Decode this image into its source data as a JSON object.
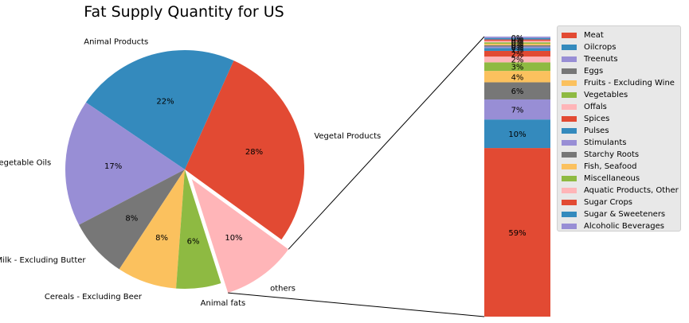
{
  "chart_data": [
    {
      "type": "pie",
      "title": "Fat Supply Quantity for US",
      "slices": [
        {
          "label": "Vegetal Products",
          "value": 28,
          "pct_label": "28%",
          "color": "#E24A33"
        },
        {
          "label": "Animal Products",
          "value": 22,
          "pct_label": "22%",
          "color": "#348ABD"
        },
        {
          "label": "Vegetable Oils",
          "value": 17,
          "pct_label": "17%",
          "color": "#988ED5"
        },
        {
          "label": "Milk - Excluding Butter",
          "value": 8,
          "pct_label": "8%",
          "color": "#777777"
        },
        {
          "label": "Cereals - Excluding Beer",
          "value": 8,
          "pct_label": "8%",
          "color": "#FBC15E"
        },
        {
          "label": "Animal fats",
          "value": 6,
          "pct_label": "6%",
          "color": "#8EBA42"
        },
        {
          "label": "others",
          "value": 10,
          "pct_label": "10%",
          "color": "#FFB5B8",
          "exploded": true
        }
      ]
    },
    {
      "type": "bar",
      "stacked": true,
      "description_of": "breakdown of others",
      "segments": [
        {
          "label": "Meat",
          "value": 59,
          "pct_label": "59%",
          "color": "#E24A33"
        },
        {
          "label": "Oilcrops",
          "value": 10,
          "pct_label": "10%",
          "color": "#348ABD"
        },
        {
          "label": "Treenuts",
          "value": 7,
          "pct_label": "7%",
          "color": "#988ED5"
        },
        {
          "label": "Eggs",
          "value": 6,
          "pct_label": "6%",
          "color": "#777777"
        },
        {
          "label": "Fruits - Excluding Wine",
          "value": 4,
          "pct_label": "4%",
          "color": "#FBC15E"
        },
        {
          "label": "Vegetables",
          "value": 3,
          "pct_label": "3%",
          "color": "#8EBA42"
        },
        {
          "label": "Offals",
          "value": 2,
          "pct_label": "2%",
          "color": "#FFB5B8"
        },
        {
          "label": "Spices",
          "value": 2,
          "pct_label": "2%",
          "color": "#E24A33"
        },
        {
          "label": "Pulses",
          "value": 1,
          "pct_label": "1%",
          "color": "#348ABD"
        },
        {
          "label": "Stimulants",
          "value": 0.5,
          "pct_label": "0%",
          "color": "#988ED5"
        },
        {
          "label": "Starchy Roots",
          "value": 0.5,
          "pct_label": "0%",
          "color": "#777777"
        },
        {
          "label": "Fish, Seafood",
          "value": 0.5,
          "pct_label": "0%",
          "color": "#FBC15E"
        },
        {
          "label": "Miscellaneous",
          "value": 0.5,
          "pct_label": "0%",
          "color": "#8EBA42"
        },
        {
          "label": "Aquatic Products, Other",
          "value": 0.5,
          "pct_label": "0%",
          "color": "#FFB5B8"
        },
        {
          "label": "Sugar Crops",
          "value": 0.5,
          "pct_label": "0%",
          "color": "#E24A33"
        },
        {
          "label": "Sugar & Sweeteners",
          "value": 0.5,
          "pct_label": "0%",
          "color": "#348ABD"
        },
        {
          "label": "Alcoholic Beverages",
          "value": 0.5,
          "pct_label": "0%",
          "color": "#988ED5"
        }
      ],
      "legend": "right"
    }
  ]
}
